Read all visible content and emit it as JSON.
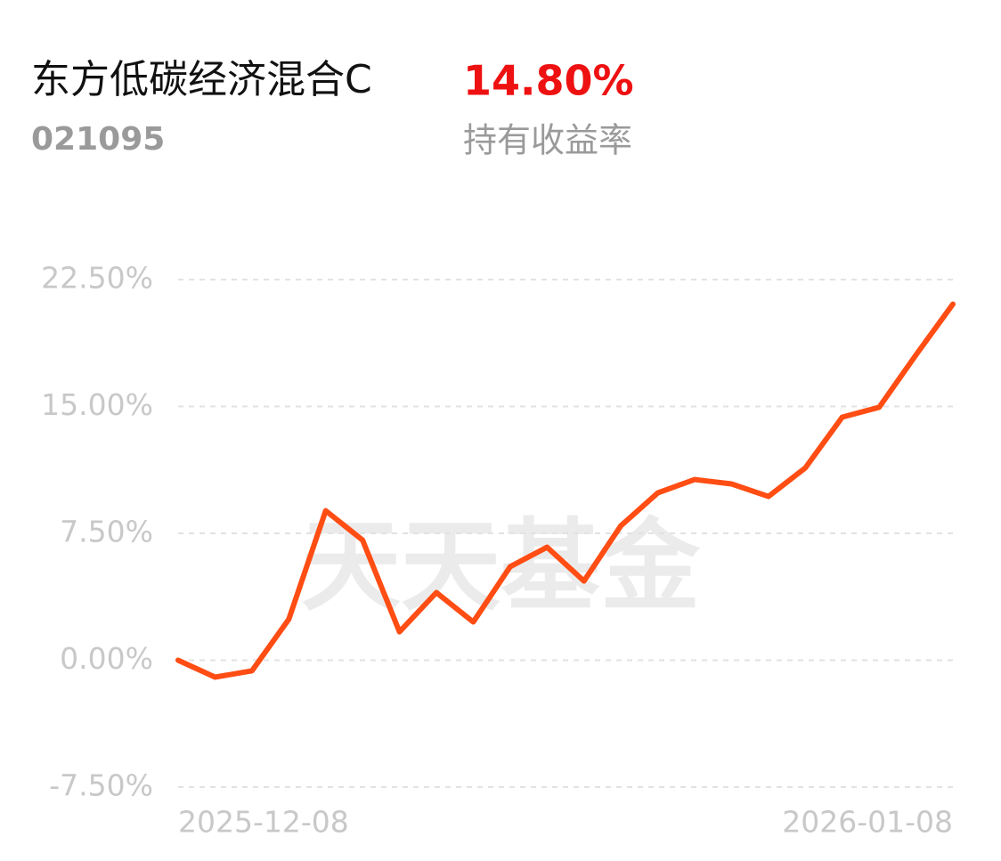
{
  "chart_data": {
    "type": "line",
    "title": "东方低碳经济混合C",
    "code": "021095",
    "return_value": "14.80%",
    "return_label": "持有收益率",
    "watermark": "天天基金",
    "categories": [
      "2025-12-08",
      null,
      null,
      null,
      null,
      null,
      null,
      null,
      null,
      null,
      null,
      null,
      null,
      null,
      null,
      null,
      null,
      null,
      null,
      null,
      null,
      "2026-01-08"
    ],
    "series": [
      {
        "color": "#ff4d14",
        "values": [
          0.0,
          -1.0,
          -0.63,
          2.42,
          8.84,
          7.1,
          1.68,
          4.0,
          2.26,
          5.53,
          6.68,
          4.68,
          7.95,
          9.89,
          10.68,
          10.42,
          9.68,
          11.37,
          14.37,
          14.95,
          18.05,
          21.05
        ]
      }
    ],
    "ylim": [
      -7.5,
      22.5
    ],
    "yticks": [
      {
        "value": 22.5,
        "label": "22.50%"
      },
      {
        "value": 15,
        "label": "15.00%"
      },
      {
        "value": 7.5,
        "label": "7.50%"
      },
      {
        "value": 0,
        "label": "0.00%"
      },
      {
        "value": -7.5,
        "label": "-7.50%"
      }
    ],
    "grid": true
  }
}
